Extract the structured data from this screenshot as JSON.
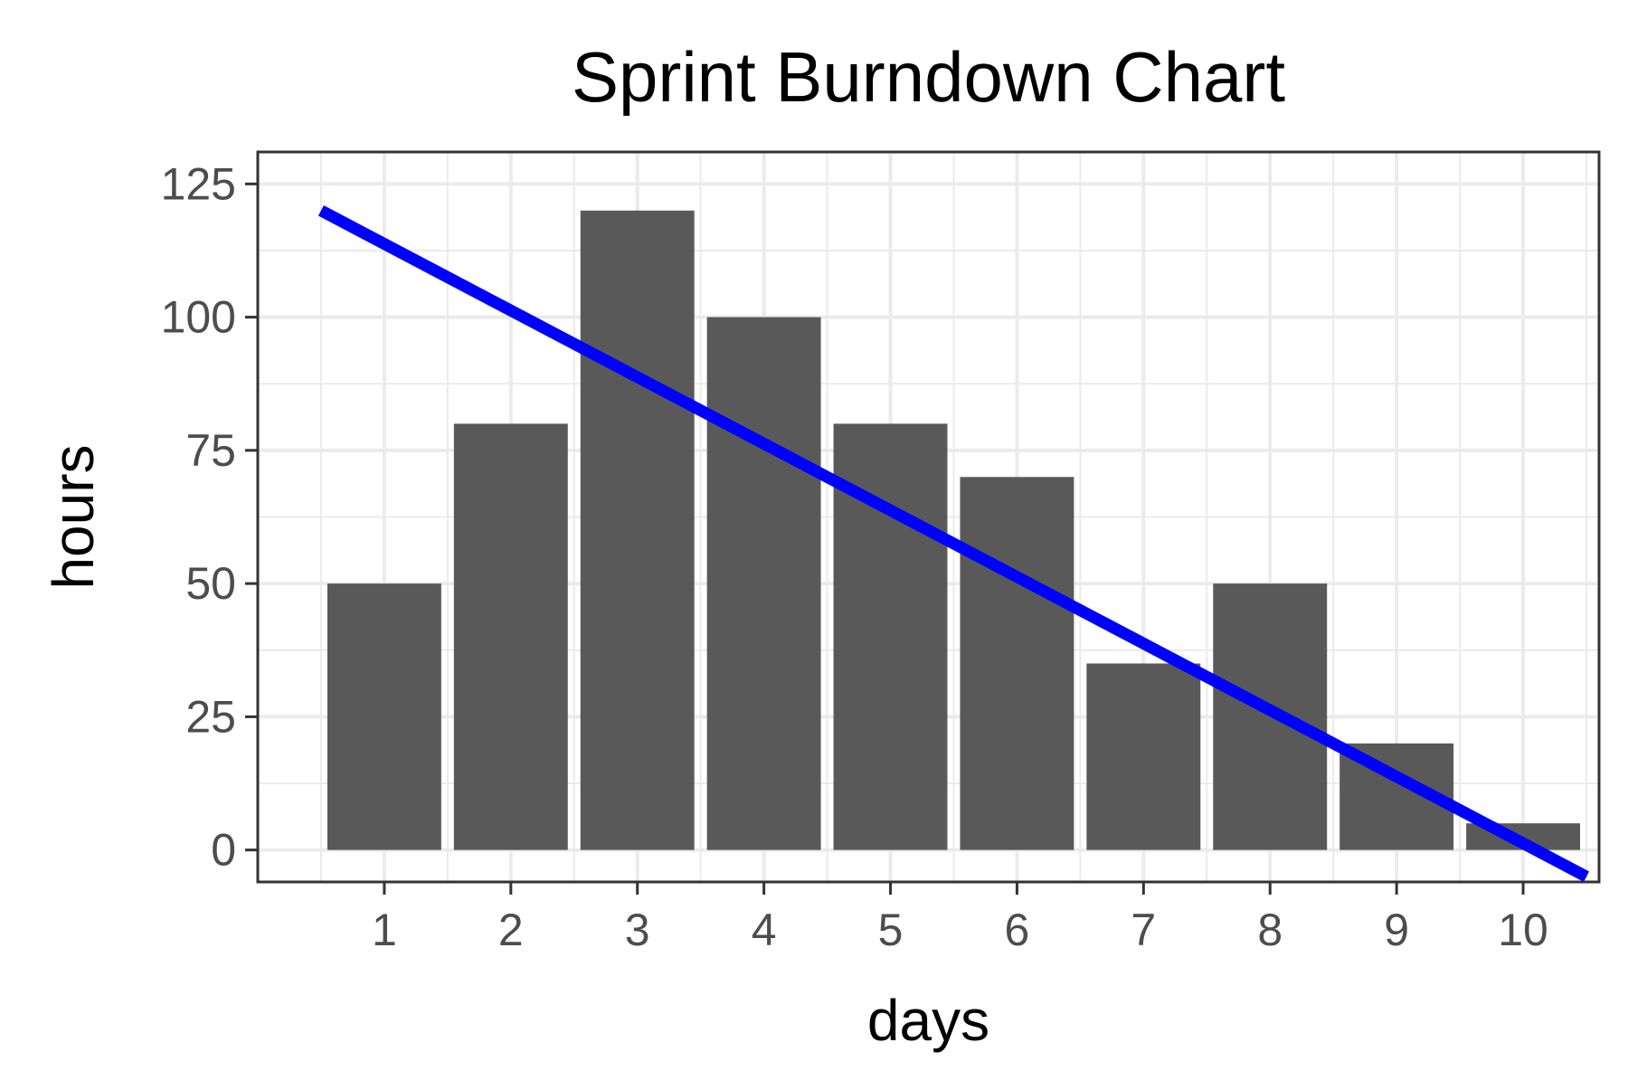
{
  "chart_data": {
    "type": "bar",
    "title": "Sprint Burndown Chart",
    "xlabel": "days",
    "ylabel": "hours",
    "categories": [
      "1",
      "2",
      "3",
      "4",
      "5",
      "6",
      "7",
      "8",
      "9",
      "10"
    ],
    "values": [
      50,
      80,
      120,
      100,
      80,
      70,
      35,
      50,
      20,
      5
    ],
    "ylim": [
      -6,
      131
    ],
    "yticks": [
      0,
      25,
      50,
      75,
      100,
      125
    ],
    "ytick_labels": [
      "0",
      "25",
      "50",
      "75",
      "100",
      "125"
    ],
    "grid": true,
    "bar_color": "#595959",
    "trend_line": {
      "color": "#0000ff",
      "start": {
        "x": 0.5,
        "y": 120
      },
      "end": {
        "x": 10.5,
        "y": -5
      }
    }
  }
}
